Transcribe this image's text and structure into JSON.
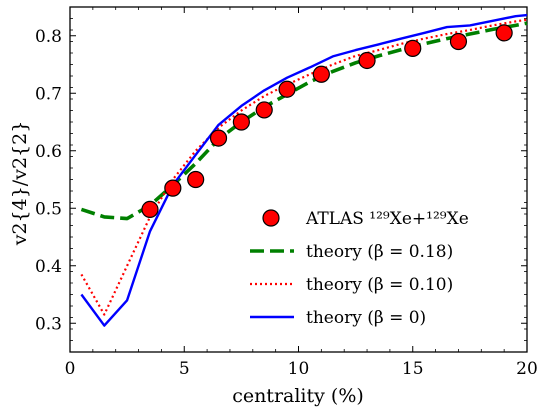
{
  "chart_data": {
    "type": "line",
    "xlabel": "centrality (%)",
    "ylabel": "v2{4}/v2{2}",
    "xlim": [
      0,
      20
    ],
    "ylim": [
      0.25,
      0.85
    ],
    "x_ticks": [
      "0",
      "5",
      "10",
      "15",
      "20"
    ],
    "y_ticks": [
      "0.3",
      "0.4",
      "0.5",
      "0.6",
      "0.7",
      "0.8"
    ],
    "x_tick_values": [
      0,
      5,
      10,
      15,
      20
    ],
    "y_tick_values": [
      0.3,
      0.4,
      0.5,
      0.6,
      0.7,
      0.8
    ],
    "grid": false,
    "legend_position": "lower-right",
    "series": [
      {
        "name": "ATLAS 129Xe+129Xe",
        "legend_label": "ATLAS ¹²⁹Xe+¹²⁹Xe",
        "style": "markers",
        "color": "#ff0000",
        "x": [
          3.5,
          4.5,
          5.5,
          6.5,
          7.5,
          8.5,
          9.5,
          11,
          13,
          15,
          17,
          19
        ],
        "y": [
          0.498,
          0.535,
          0.55,
          0.622,
          0.65,
          0.671,
          0.707,
          0.733,
          0.757,
          0.778,
          0.79,
          0.805
        ]
      },
      {
        "name": "theory (β = 0.18)",
        "legend_label": "theory (β = 0.18)",
        "style": "dashed",
        "color": "#008000",
        "x": [
          0.5,
          1.5,
          2.5,
          3.5,
          4.5,
          5.5,
          6.5,
          7.5,
          8.5,
          9.5,
          10.5,
          11.5,
          12.5,
          13.5,
          14.5,
          15.5,
          16.5,
          17.5,
          18.5,
          19.5,
          20
        ],
        "y": [
          0.498,
          0.485,
          0.482,
          0.505,
          0.54,
          0.578,
          0.62,
          0.65,
          0.676,
          0.698,
          0.72,
          0.738,
          0.753,
          0.765,
          0.776,
          0.786,
          0.795,
          0.803,
          0.811,
          0.818,
          0.822
        ]
      },
      {
        "name": "theory (β = 0.10)",
        "legend_label": "theory (β = 0.10)",
        "style": "dotted",
        "color": "#ff0000",
        "x": [
          0.5,
          1.5,
          2.5,
          3.5,
          4.5,
          5.5,
          6.5,
          7.5,
          8.5,
          9.5,
          10.5,
          11.5,
          12.5,
          13.5,
          14.5,
          15.5,
          16.5,
          17.5,
          18.5,
          19.5,
          20
        ],
        "y": [
          0.385,
          0.315,
          0.4,
          0.485,
          0.55,
          0.6,
          0.64,
          0.67,
          0.695,
          0.715,
          0.733,
          0.75,
          0.765,
          0.775,
          0.786,
          0.795,
          0.803,
          0.81,
          0.818,
          0.825,
          0.828
        ]
      },
      {
        "name": "theory (β = 0)",
        "legend_label": "theory (β = 0)",
        "style": "solid",
        "color": "#0000ff",
        "x": [
          0.5,
          1.5,
          2.5,
          3.5,
          4.5,
          5.5,
          6.5,
          7.5,
          8.5,
          9.5,
          10.5,
          11.5,
          12.5,
          13.5,
          14.5,
          15.5,
          16.5,
          17.5,
          18.5,
          19.5,
          20
        ],
        "y": [
          0.35,
          0.296,
          0.34,
          0.46,
          0.54,
          0.593,
          0.645,
          0.678,
          0.705,
          0.727,
          0.745,
          0.764,
          0.775,
          0.785,
          0.795,
          0.805,
          0.815,
          0.818,
          0.826,
          0.834,
          0.836
        ]
      }
    ]
  }
}
